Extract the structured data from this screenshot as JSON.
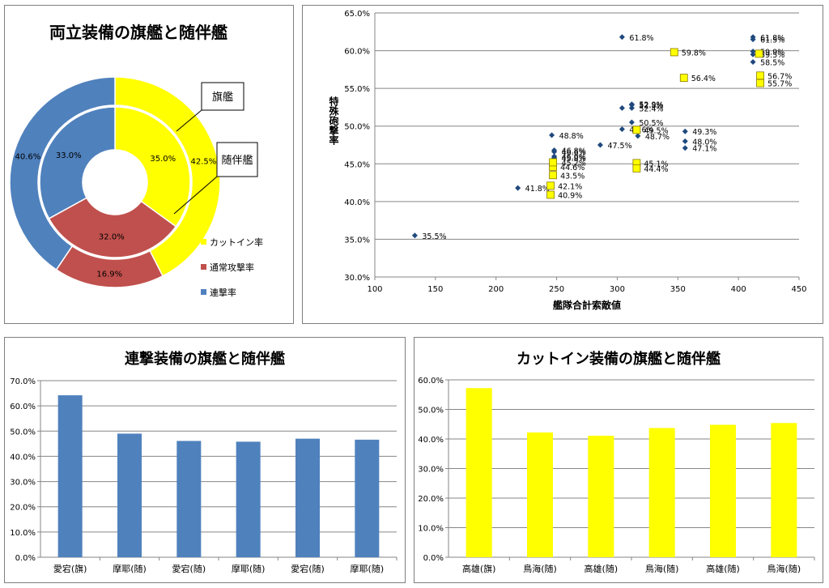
{
  "chart_data": [
    {
      "id": "donut",
      "type": "pie",
      "title": "両立装備の旗艦と随伴艦",
      "categories": [
        "カットイン率",
        "通常攻撃率",
        "連撃率"
      ],
      "colors": [
        "#ffff00",
        "#c0504d",
        "#4f81bd"
      ],
      "series": [
        {
          "name": "旗艦",
          "values": [
            42.5,
            16.9,
            40.6
          ],
          "labels": [
            "42.5%",
            "16.9%",
            "40.6%"
          ]
        },
        {
          "name": "随伴艦",
          "values": [
            35.0,
            32.0,
            33.0
          ],
          "labels": [
            "35.0%",
            "32.0%",
            "33.0%"
          ]
        }
      ],
      "legend": "right"
    },
    {
      "id": "scatter",
      "type": "scatter",
      "title": "",
      "xlabel": "艦隊合計索敵値",
      "ylabel": "特殊砲撃率",
      "xlim": [
        100,
        450
      ],
      "ylim": [
        30,
        65
      ],
      "xticks": [
        "100",
        "150",
        "200",
        "250",
        "300",
        "350",
        "400",
        "450"
      ],
      "yticks": [
        "30.0%",
        "35.0%",
        "40.0%",
        "45.0%",
        "50.0%",
        "55.0%",
        "60.0%",
        "65.0%"
      ],
      "grid": true,
      "series": [
        {
          "marker": "diamond",
          "color": "#1f497d",
          "points": [
            {
              "x": 133,
              "y": 35.5,
              "label": "35.5%"
            },
            {
              "x": 218,
              "y": 41.8,
              "label": "41.8%"
            },
            {
              "x": 246,
              "y": 48.8,
              "label": "48.8%"
            },
            {
              "x": 248,
              "y": 46.6,
              "label": "46.6%"
            },
            {
              "x": 248,
              "y": 46.8,
              "label": "46.8%"
            },
            {
              "x": 248,
              "y": 45.8,
              "label": "45.8%"
            },
            {
              "x": 248,
              "y": 46.0,
              "label": "46.0%"
            },
            {
              "x": 248,
              "y": 45.2,
              "label": "45.2%"
            },
            {
              "x": 286,
              "y": 47.5,
              "label": "47.5%"
            },
            {
              "x": 304,
              "y": 61.8,
              "label": "61.8%"
            },
            {
              "x": 304,
              "y": 52.4,
              "label": ""
            },
            {
              "x": 304,
              "y": 49.6,
              "label": "49.6%"
            },
            {
              "x": 312,
              "y": 52.9,
              "label": "52.9%"
            },
            {
              "x": 312,
              "y": 52.8,
              "label": "52.8%"
            },
            {
              "x": 312,
              "y": 52.4,
              "label": "52.4%"
            },
            {
              "x": 312,
              "y": 50.5,
              "label": "50.5%"
            },
            {
              "x": 317,
              "y": 48.7,
              "label": "48.7%"
            },
            {
              "x": 356,
              "y": 49.3,
              "label": "49.3%"
            },
            {
              "x": 356,
              "y": 48.0,
              "label": "48.0%"
            },
            {
              "x": 356,
              "y": 47.1,
              "label": "47.1%"
            },
            {
              "x": 412,
              "y": 61.8,
              "label": "61.8%"
            },
            {
              "x": 412,
              "y": 61.5,
              "label": "61.5%"
            },
            {
              "x": 412,
              "y": 59.9,
              "label": "59.9%"
            },
            {
              "x": 412,
              "y": 59.5,
              "label": "59.5%"
            },
            {
              "x": 412,
              "y": 58.5,
              "label": "58.5%"
            }
          ]
        },
        {
          "marker": "square",
          "color": "#ffff00",
          "points": [
            {
              "x": 245,
              "y": 42.1,
              "label": "42.1%"
            },
            {
              "x": 245,
              "y": 40.9,
              "label": "40.9%"
            },
            {
              "x": 247,
              "y": 43.5,
              "label": "43.5%"
            },
            {
              "x": 247,
              "y": 44.6,
              "label": "44.6%"
            },
            {
              "x": 247,
              "y": 45.2,
              "label": ""
            },
            {
              "x": 316,
              "y": 49.5,
              "label": "49.5%"
            },
            {
              "x": 316,
              "y": 45.1,
              "label": "45.1%"
            },
            {
              "x": 316,
              "y": 44.4,
              "label": "44.4%"
            },
            {
              "x": 347,
              "y": 59.8,
              "label": "59.8%"
            },
            {
              "x": 355,
              "y": 56.4,
              "label": "56.4%"
            },
            {
              "x": 417,
              "y": 59.6,
              "label": ""
            },
            {
              "x": 418,
              "y": 56.7,
              "label": "56.7%"
            },
            {
              "x": 418,
              "y": 55.7,
              "label": "55.7%"
            }
          ]
        }
      ]
    },
    {
      "id": "bar1",
      "type": "bar",
      "title": "連撃装備の旗艦と随伴艦",
      "categories": [
        "愛宕(旗)",
        "摩耶(随)",
        "愛宕(随)",
        "摩耶(随)",
        "愛宕(随)",
        "摩耶(随)"
      ],
      "values": [
        64.2,
        49.0,
        46.1,
        45.8,
        47.0,
        46.6
      ],
      "color": "#4f81bd",
      "ylim": [
        0,
        70
      ],
      "yticks": [
        "0.0%",
        "10.0%",
        "20.0%",
        "30.0%",
        "40.0%",
        "50.0%",
        "60.0%",
        "70.0%"
      ],
      "grid": true
    },
    {
      "id": "bar2",
      "type": "bar",
      "title": "カットイン装備の旗艦と随伴艦",
      "categories": [
        "高雄(旗)",
        "鳥海(随)",
        "高雄(随)",
        "鳥海(随)",
        "高雄(随)",
        "鳥海(随)"
      ],
      "values": [
        57.2,
        42.2,
        41.1,
        43.7,
        44.8,
        45.4
      ],
      "color": "#ffff00",
      "ylim": [
        0,
        60
      ],
      "yticks": [
        "0.0%",
        "10.0%",
        "20.0%",
        "30.0%",
        "40.0%",
        "50.0%",
        "60.0%"
      ],
      "grid": true
    }
  ]
}
